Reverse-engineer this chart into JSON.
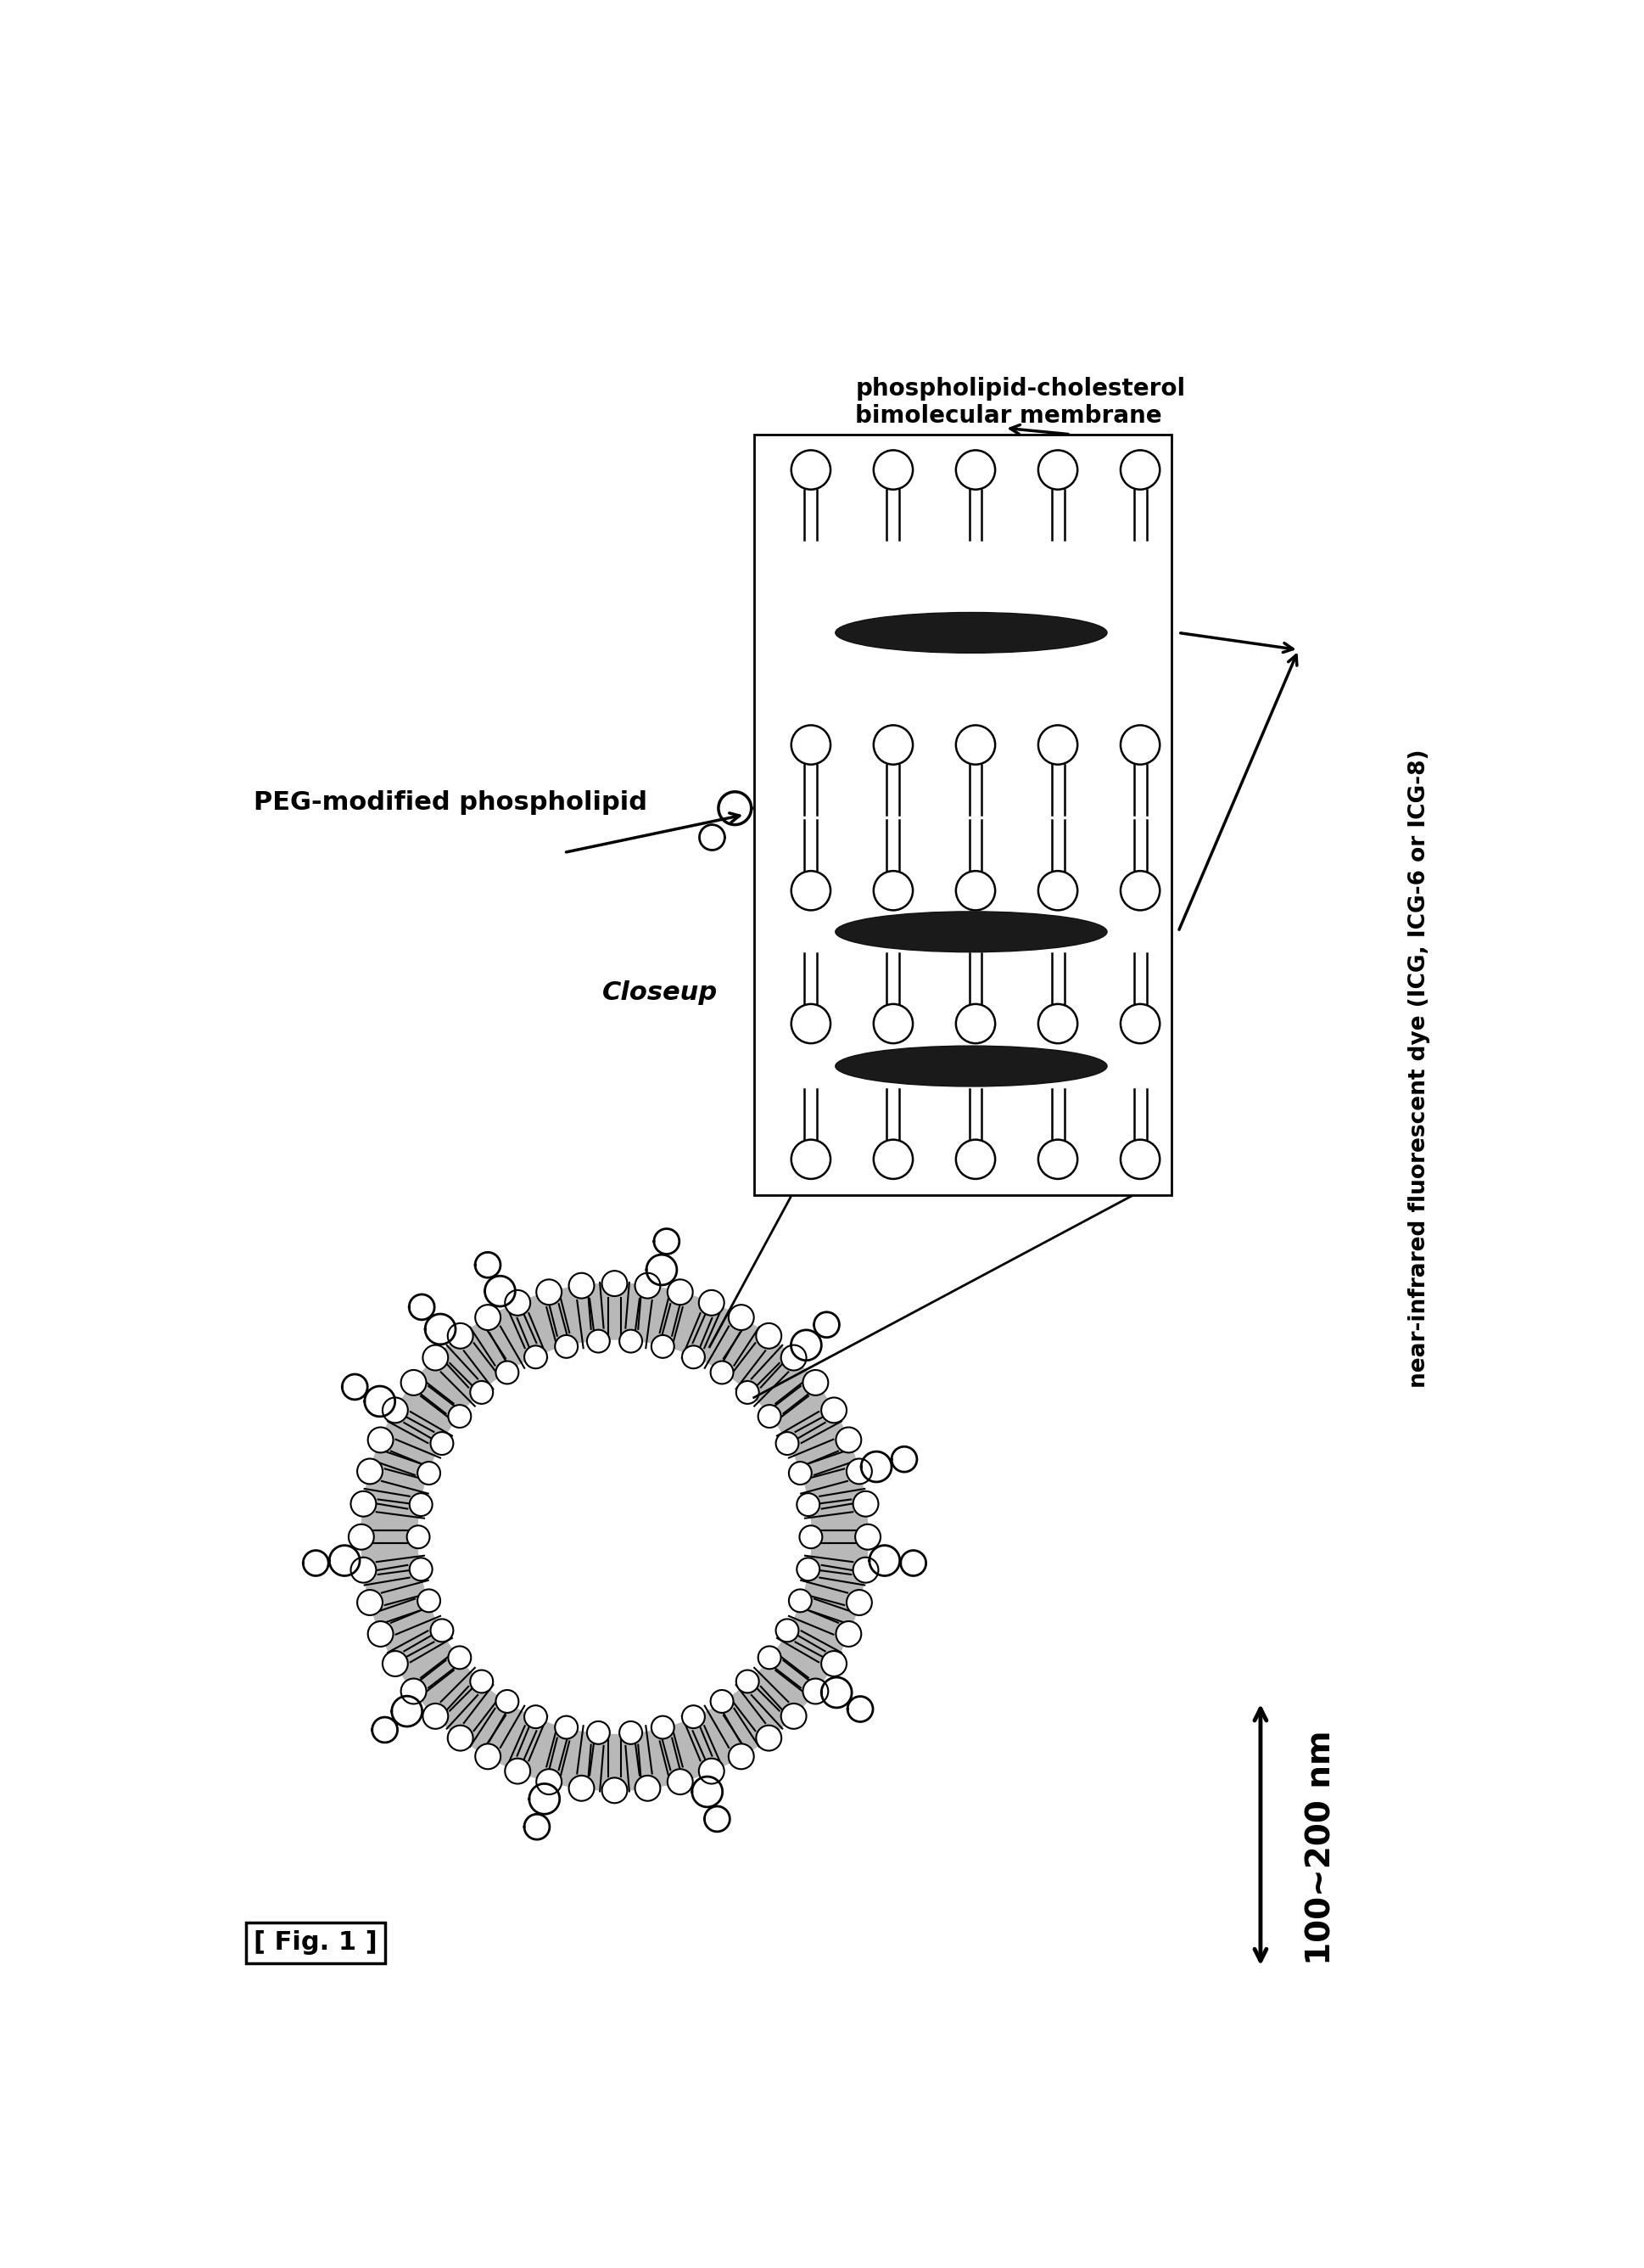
{
  "label_peg": "PEG-modified phospholipid",
  "label_membrane": "phospholipid-cholesterol\nbimolecular membrane",
  "label_dye": "near-infrared fluorescent dye (ICG, ICG-6 or ICG-8)",
  "label_closeup": "Closeup",
  "label_size": "100~200 nm",
  "label_fig": "[ Fig. 1 ]",
  "bg_color": "#ffffff",
  "fig_width": 19.38,
  "fig_height": 26.72
}
